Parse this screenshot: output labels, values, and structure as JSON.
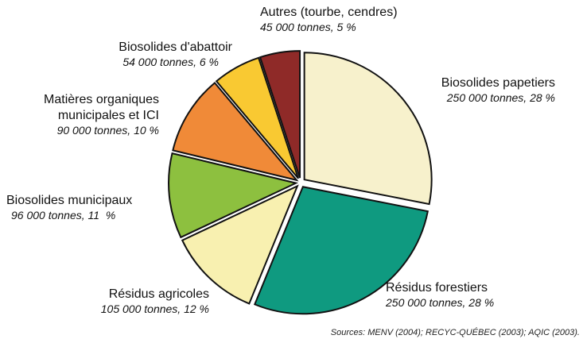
{
  "chart_data": {
    "type": "pie",
    "categories": [
      "Biosolides papetiers",
      "Résidus forestiers",
      "Résidus agricoles",
      "Biosolides municipaux",
      "Matières organiques municipales et ICI",
      "Biosolides d'abattoir",
      "Autres (tourbe, cendres)"
    ],
    "values": [
      250000,
      250000,
      105000,
      96000,
      90000,
      54000,
      45000
    ],
    "value_labels": [
      "250 000 tonnes, 28 %",
      "250 000 tonnes, 28 %",
      "105 000 tonnes, 12 %",
      "96 000 tonnes, 11  %",
      "90 000 tonnes, 10 %",
      "54 000 tonnes, 6 %",
      "45 000 tonnes, 5 %"
    ],
    "colors": [
      "#f7f1cc",
      "#0f9a80",
      "#f8f0b0",
      "#8dc03f",
      "#f08a38",
      "#f9c932",
      "#8f2a28"
    ],
    "source": "Sources: MENV (2004); RECYC-QUÉBEC (2003); AQIC (2003)."
  }
}
